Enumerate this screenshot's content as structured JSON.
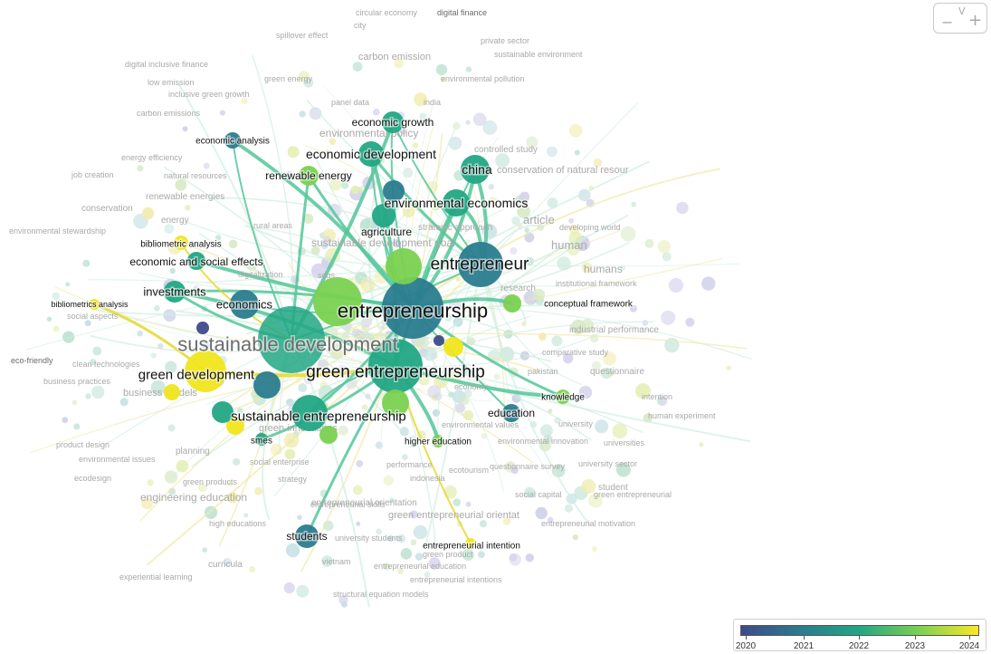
{
  "colors": {
    "y2020": "#3e4a8a",
    "y2021": "#2a7c8e",
    "y2022": "#22a784",
    "y2023": "#7ad151",
    "y2024": "#f1e51d",
    "y2024b": "#fde725",
    "link": "#54c59a",
    "linkYellow": "#e6d82a"
  },
  "legend": {
    "labels": [
      "2020",
      "2021",
      "2022",
      "2023",
      "2024"
    ]
  },
  "zoom": {
    "minus": "−",
    "plus": "+",
    "v": "V"
  },
  "nodes": [
    {
      "id": "entrepreneurship",
      "label": "entrepreneurship",
      "year": "y2021",
      "fs": 22
    },
    {
      "id": "sustainable-development",
      "label": "sustainable development",
      "year": "y2022",
      "fs": 22,
      "fade": true
    },
    {
      "id": "green-entrepreneurship",
      "label": "green entrepreneurship",
      "year": "y2022",
      "fs": 19
    },
    {
      "id": "entrepreneur",
      "label": "entrepreneur",
      "year": "y2021",
      "fs": 19
    },
    {
      "id": "green-development",
      "label": "green development",
      "year": "y2024",
      "fs": 15
    },
    {
      "id": "sustainable-entrepreneurship",
      "label": "sustainable entrepreneurship",
      "year": "y2022",
      "fs": 15
    },
    {
      "id": "economic-development",
      "label": "economic development",
      "year": "y2022",
      "fs": 14
    },
    {
      "id": "environmental-economics",
      "label": "environmental economics",
      "year": "y2022",
      "fs": 14
    },
    {
      "id": "china",
      "label": "china",
      "year": "y2022",
      "fs": 14
    },
    {
      "id": "economics",
      "label": "economics",
      "year": "y2021",
      "fs": 13
    },
    {
      "id": "investments",
      "label": "investments",
      "year": "y2022",
      "fs": 13
    },
    {
      "id": "economic-growth",
      "label": "economic growth",
      "year": "y2022",
      "fs": 12
    },
    {
      "id": "renewable-energy",
      "label": "renewable energy",
      "year": "y2023",
      "fs": 12
    },
    {
      "id": "economic-and-social-effects",
      "label": "economic and social effects",
      "year": "y2022",
      "fs": 12
    },
    {
      "id": "education",
      "label": "education",
      "year": "y2021",
      "fs": 12
    },
    {
      "id": "students",
      "label": "students",
      "year": "y2021",
      "fs": 12
    },
    {
      "id": "agriculture",
      "label": "agriculture",
      "year": "y2022",
      "fs": 12
    },
    {
      "id": "economic-analysis",
      "label": "economic analysis",
      "year": "y2021",
      "fs": 10
    },
    {
      "id": "bibliometric-analysis",
      "label": "bibliometric analysis",
      "year": "y2024",
      "fs": 10
    },
    {
      "id": "bibliometrics-analysis",
      "label": "bibliometrics analysis",
      "year": "y2024",
      "fs": 9
    },
    {
      "id": "knowledge",
      "label": "knowledge",
      "year": "y2023",
      "fs": 10
    },
    {
      "id": "higher-education",
      "label": "higher education",
      "year": "y2023",
      "fs": 10
    },
    {
      "id": "smes",
      "label": "smes",
      "year": "y2022",
      "fs": 10
    },
    {
      "id": "entrepreneurial-intention",
      "label": "entrepreneurial intention",
      "year": "y2024",
      "fs": 10
    },
    {
      "id": "yellow-a",
      "label": "",
      "year": "y2024",
      "fs": 0
    },
    {
      "id": "yellow-b",
      "label": "",
      "year": "y2024",
      "fs": 0
    },
    {
      "id": "yellow-c",
      "label": "",
      "year": "y2024",
      "fs": 0
    },
    {
      "id": "purple-a",
      "label": "",
      "year": "y2020",
      "fs": 0
    },
    {
      "id": "purple-b",
      "label": "",
      "year": "y2020",
      "fs": 0
    },
    {
      "id": "conceptual-framework",
      "label": "conceptual framework",
      "year": "y2023",
      "fs": 10
    },
    {
      "id": "teal-a",
      "label": "",
      "year": "y2021",
      "fs": 0
    },
    {
      "id": "teal-b",
      "label": "",
      "year": "y2021",
      "fs": 0
    },
    {
      "id": "green-a",
      "label": "",
      "year": "y2023",
      "fs": 0
    },
    {
      "id": "green-b",
      "label": "",
      "year": "y2023",
      "fs": 0
    },
    {
      "id": "green-c",
      "label": "",
      "year": "y2022",
      "fs": 0
    },
    {
      "id": "green-d",
      "label": "",
      "year": "y2023",
      "fs": 0
    },
    {
      "id": "green-e",
      "label": "",
      "year": "y2023",
      "fs": 0
    }
  ],
  "faded_labels": [
    {
      "t": "digital finance",
      "fs": 9,
      "dark": true
    },
    {
      "t": "city",
      "fs": 9
    },
    {
      "t": "spillover effect",
      "fs": 9
    },
    {
      "t": "private sector",
      "fs": 9
    },
    {
      "t": "sustainable environment",
      "fs": 9
    },
    {
      "t": "digital inclusive finance",
      "fs": 9
    },
    {
      "t": "carbon emission",
      "fs": 11
    },
    {
      "t": "low emission",
      "fs": 9
    },
    {
      "t": "green energy",
      "fs": 9
    },
    {
      "t": "environmental pollution",
      "fs": 9
    },
    {
      "t": "inclusive green growth",
      "fs": 9
    },
    {
      "t": "panel data",
      "fs": 9
    },
    {
      "t": "india",
      "fs": 9
    },
    {
      "t": "carbon emissions",
      "fs": 9
    },
    {
      "t": "environmental policy",
      "fs": 12
    },
    {
      "t": "controlled study",
      "fs": 10
    },
    {
      "t": "energy efficiency",
      "fs": 9
    },
    {
      "t": "job creation",
      "fs": 9
    },
    {
      "t": "natural resources",
      "fs": 9
    },
    {
      "t": "conservation of natural resour",
      "fs": 11
    },
    {
      "t": "renewable energies",
      "fs": 10
    },
    {
      "t": "conservation",
      "fs": 10
    },
    {
      "t": "energy",
      "fs": 10
    },
    {
      "t": "article",
      "fs": 13
    },
    {
      "t": "developing world",
      "fs": 9
    },
    {
      "t": "environmental stewardship",
      "fs": 9
    },
    {
      "t": "rural areas",
      "fs": 9
    },
    {
      "t": "strategic approach",
      "fs": 10
    },
    {
      "t": "human",
      "fs": 13
    },
    {
      "t": "sustainable development goal",
      "fs": 12
    },
    {
      "t": "humans",
      "fs": 12
    },
    {
      "t": "sdgs",
      "fs": 9
    },
    {
      "t": "digitalization",
      "fs": 9
    },
    {
      "t": "institutional framework",
      "fs": 9
    },
    {
      "t": "research",
      "fs": 10
    },
    {
      "t": "social aspects",
      "fs": 9
    },
    {
      "t": "industrial performance",
      "fs": 10
    },
    {
      "t": "comparative study",
      "fs": 9
    },
    {
      "t": "eco-friendly",
      "fs": 9,
      "dark": true
    },
    {
      "t": "clean technologies",
      "fs": 9
    },
    {
      "t": "pakistan",
      "fs": 9
    },
    {
      "t": "questionnaire",
      "fs": 10
    },
    {
      "t": "business practices",
      "fs": 9
    },
    {
      "t": "business models",
      "fs": 11
    },
    {
      "t": "economy",
      "fs": 9
    },
    {
      "t": "intention",
      "fs": 9
    },
    {
      "t": "human experiment",
      "fs": 9
    },
    {
      "t": "university",
      "fs": 9
    },
    {
      "t": "environmental values",
      "fs": 9
    },
    {
      "t": "green innovations",
      "fs": 11
    },
    {
      "t": "product design",
      "fs": 9
    },
    {
      "t": "planning",
      "fs": 10
    },
    {
      "t": "environmental innovation",
      "fs": 9
    },
    {
      "t": "universities",
      "fs": 9
    },
    {
      "t": "environmental issues",
      "fs": 9
    },
    {
      "t": "social enterprise",
      "fs": 9
    },
    {
      "t": "performance",
      "fs": 9
    },
    {
      "t": "university sector",
      "fs": 9
    },
    {
      "t": "ecodesign",
      "fs": 9
    },
    {
      "t": "green products",
      "fs": 9
    },
    {
      "t": "strategy",
      "fs": 9
    },
    {
      "t": "indonesia",
      "fs": 9
    },
    {
      "t": "ecotourism",
      "fs": 9
    },
    {
      "t": "questionnaire survey",
      "fs": 9
    },
    {
      "t": "social capital",
      "fs": 9
    },
    {
      "t": "student",
      "fs": 10
    },
    {
      "t": "engineering education",
      "fs": 12
    },
    {
      "t": "entrepreneurial skills",
      "fs": 9
    },
    {
      "t": "entrepreneurial orientation",
      "fs": 10
    },
    {
      "t": "green entrepreneurial orientat",
      "fs": 11
    },
    {
      "t": "high educations",
      "fs": 9
    },
    {
      "t": "entrepreneurial motivation",
      "fs": 9
    },
    {
      "t": "university students",
      "fs": 9
    },
    {
      "t": "green product",
      "fs": 9
    },
    {
      "t": "curricula",
      "fs": 10
    },
    {
      "t": "vietnam",
      "fs": 9
    },
    {
      "t": "entrepreneurial education",
      "fs": 9
    },
    {
      "t": "experiential learning",
      "fs": 9
    },
    {
      "t": "entrepreneurial intentions",
      "fs": 9
    },
    {
      "t": "structural equation models",
      "fs": 9
    },
    {
      "t": "green entrepreneurial",
      "fs": 9
    },
    {
      "t": "circular economy",
      "fs": 9
    }
  ]
}
